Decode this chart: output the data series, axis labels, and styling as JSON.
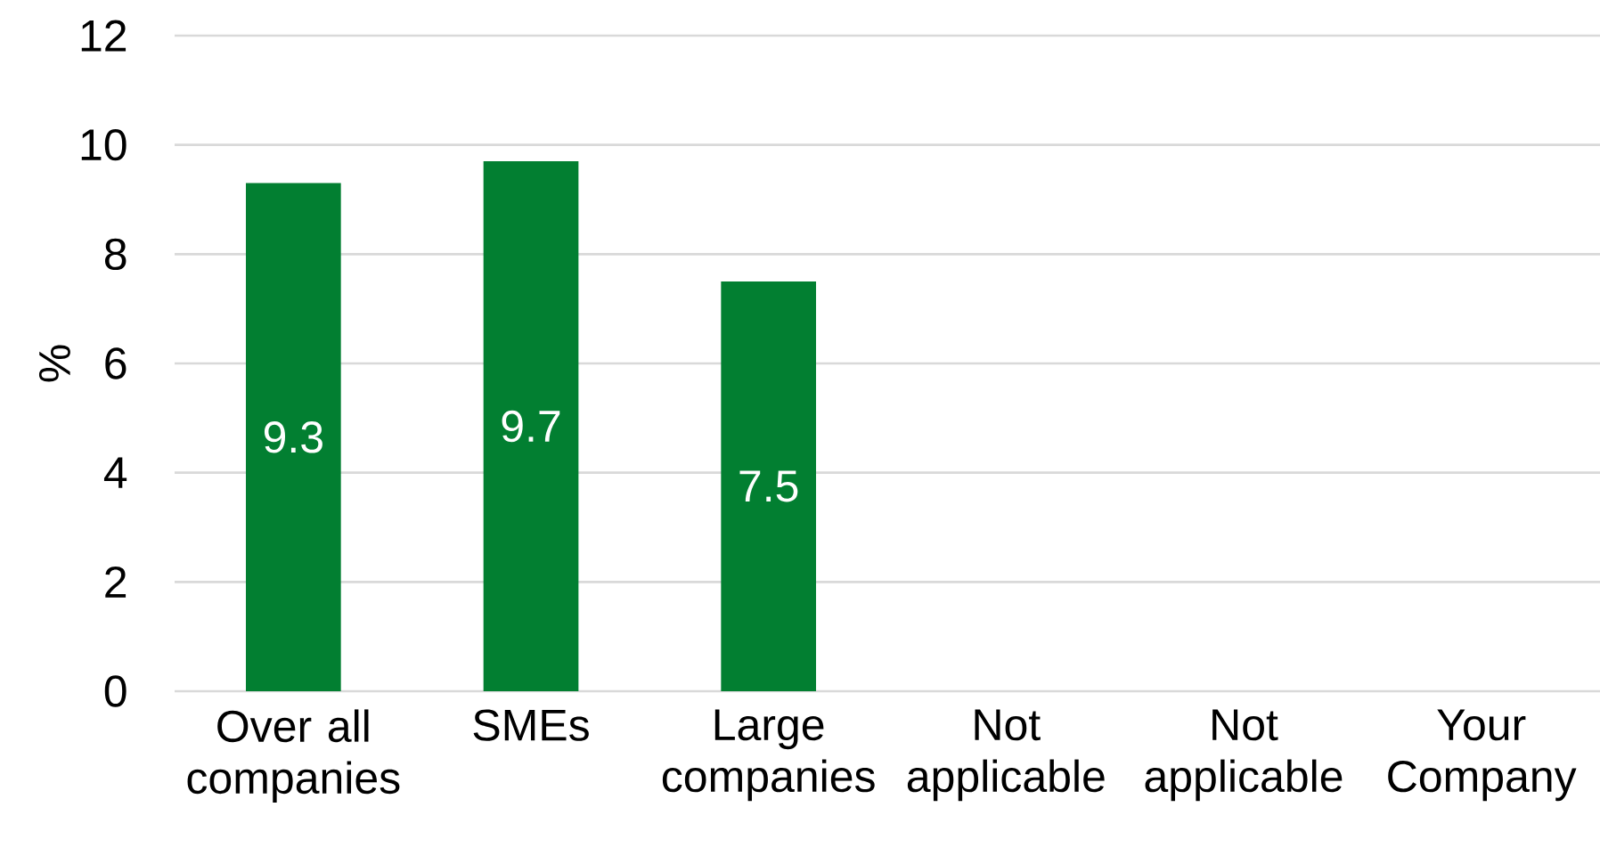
{
  "chart_data": {
    "type": "bar",
    "ylabel": "%",
    "categories": [
      "Over all companies",
      "SMEs",
      "Large companies",
      "Not applicable",
      "Not applicable",
      "Your Company"
    ],
    "values": [
      9.3,
      9.7,
      7.5,
      null,
      null,
      null
    ],
    "color": "#027f31",
    "ylim": [
      0,
      12
    ],
    "yticks": [
      0,
      2,
      4,
      6,
      8,
      10,
      12
    ],
    "grid": "y",
    "data_labels": true
  }
}
